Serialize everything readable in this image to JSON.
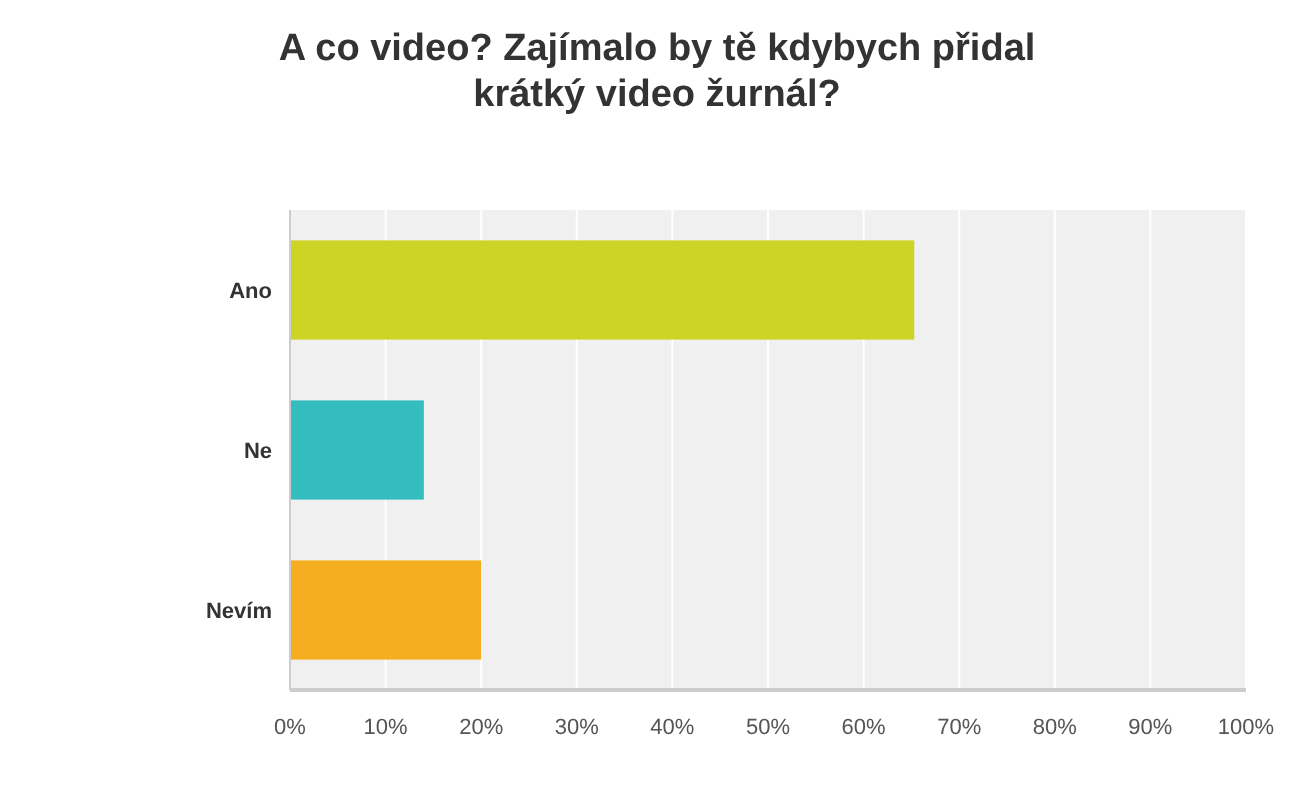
{
  "chart_data": {
    "type": "bar",
    "orientation": "horizontal",
    "title": "A co video? Zajímalo by tě kdybych přidal\nkrátký video žurnál?",
    "categories": [
      "Ano",
      "Ne",
      "Nevím"
    ],
    "values": [
      65.3,
      14,
      20
    ],
    "colors": [
      "#cdd425",
      "#33bdbf",
      "#f6ae21"
    ],
    "xlim": [
      0,
      100
    ],
    "xticks": [
      {
        "value": 0,
        "label": "0%"
      },
      {
        "value": 10,
        "label": "10%"
      },
      {
        "value": 20,
        "label": "20%"
      },
      {
        "value": 30,
        "label": "30%"
      },
      {
        "value": 40,
        "label": "40%"
      },
      {
        "value": 50,
        "label": "50%"
      },
      {
        "value": 60,
        "label": "60%"
      },
      {
        "value": 70,
        "label": "70%"
      },
      {
        "value": 80,
        "label": "80%"
      },
      {
        "value": 90,
        "label": "90%"
      },
      {
        "value": 100,
        "label": "100%"
      }
    ],
    "grid": "x"
  }
}
